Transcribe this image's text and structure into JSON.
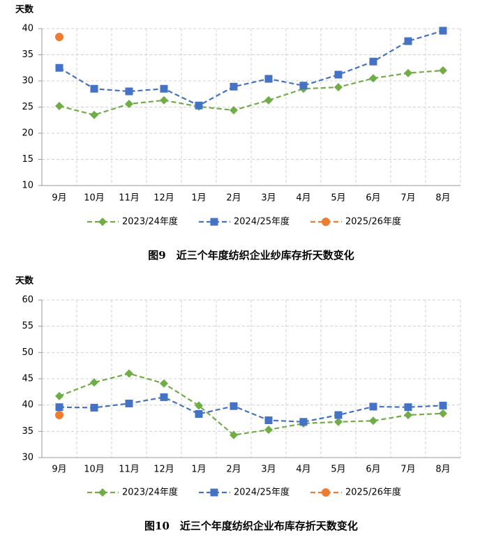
{
  "chart_data": [
    {
      "type": "line",
      "title": "图9　近三个年度纺织企业纱库存折天数变化",
      "y_label": "天数",
      "categories": [
        "9月",
        "10月",
        "11月",
        "12月",
        "1月",
        "2月",
        "3月",
        "4月",
        "5月",
        "6月",
        "7月",
        "8月"
      ],
      "series": [
        {
          "name": "2023/24年度",
          "color": "#70ad47",
          "marker": "diamond",
          "values": [
            25.2,
            23.5,
            25.6,
            26.3,
            25.1,
            24.4,
            26.3,
            28.5,
            28.8,
            30.5,
            31.5,
            32.0
          ]
        },
        {
          "name": "2024/25年度",
          "color": "#4472c4",
          "marker": "square",
          "values": [
            32.5,
            28.5,
            28.0,
            28.5,
            25.3,
            28.9,
            30.4,
            29.1,
            31.2,
            33.7,
            37.6,
            39.6
          ]
        },
        {
          "name": "2025/26年度",
          "color": "#ed7d31",
          "marker": "circle",
          "values": [
            38.4,
            null,
            null,
            null,
            null,
            null,
            null,
            null,
            null,
            null,
            null,
            null
          ]
        }
      ],
      "ylim": [
        10,
        40
      ],
      "yticks": [
        10,
        15,
        20,
        25,
        30,
        35,
        40
      ],
      "grid": true,
      "legend": "bottom"
    },
    {
      "type": "line",
      "title": "图10　近三个年度纺织企业布库存折天数变化",
      "y_label": "天数",
      "categories": [
        "9月",
        "10月",
        "11月",
        "12月",
        "1月",
        "2月",
        "3月",
        "4月",
        "5月",
        "6月",
        "7月",
        "8月"
      ],
      "series": [
        {
          "name": "2023/24年度",
          "color": "#70ad47",
          "marker": "diamond",
          "values": [
            41.7,
            44.3,
            46.0,
            44.1,
            39.9,
            34.3,
            35.3,
            36.5,
            36.8,
            37.0,
            38.1,
            38.4
          ]
        },
        {
          "name": "2024/25年度",
          "color": "#4472c4",
          "marker": "square",
          "values": [
            39.6,
            39.5,
            40.3,
            41.5,
            38.3,
            39.8,
            37.1,
            36.8,
            38.1,
            39.7,
            39.6,
            39.9
          ]
        },
        {
          "name": "2025/26年度",
          "color": "#ed7d31",
          "marker": "circle",
          "values": [
            38.1,
            null,
            null,
            null,
            null,
            null,
            null,
            null,
            null,
            null,
            null,
            null
          ]
        }
      ],
      "ylim": [
        30,
        60
      ],
      "yticks": [
        30,
        35,
        40,
        45,
        50,
        55,
        60
      ],
      "grid": true,
      "legend": "bottom"
    }
  ]
}
